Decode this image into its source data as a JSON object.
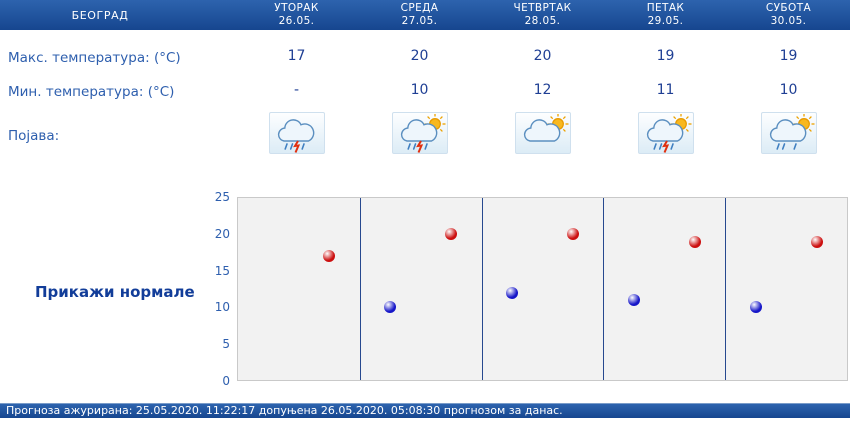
{
  "header": {
    "city": "БЕОГРАД",
    "days": [
      {
        "name": "УТОРАК",
        "date": "26.05."
      },
      {
        "name": "СРЕДА",
        "date": "27.05."
      },
      {
        "name": "ЧЕТВРТАК",
        "date": "28.05."
      },
      {
        "name": "ПЕТАК",
        "date": "29.05."
      },
      {
        "name": "СУБОТА",
        "date": "30.05."
      }
    ]
  },
  "rows": {
    "max_label": "Макс. температура: (°C)",
    "min_label": "Мин. температура: (°C)",
    "phenomena_label": "Појава:",
    "max_values": [
      "17",
      "20",
      "20",
      "19",
      "19"
    ],
    "min_values": [
      "-",
      "10",
      "12",
      "11",
      "10"
    ],
    "icons": [
      {
        "name": "rain-thunder-icon",
        "sun": false,
        "rain": true,
        "thunder": true
      },
      {
        "name": "sun-rain-thunder-icon",
        "sun": true,
        "rain": true,
        "thunder": true
      },
      {
        "name": "sun-cloud-icon",
        "sun": true,
        "rain": false,
        "thunder": false
      },
      {
        "name": "sun-rain-thunder-icon",
        "sun": true,
        "rain": true,
        "thunder": true
      },
      {
        "name": "sun-rain-icon",
        "sun": true,
        "rain": true,
        "thunder": false
      }
    ]
  },
  "normals_button": "Прикажи нормале",
  "chart_data": {
    "type": "scatter",
    "title": "",
    "xlabel": "",
    "ylabel": "",
    "categories": [
      "26.05.",
      "27.05.",
      "28.05.",
      "29.05.",
      "30.05."
    ],
    "series": [
      {
        "name": "Макс. температура",
        "color": "#cc0f0f",
        "offset": 0.75,
        "values": [
          17,
          20,
          20,
          19,
          19
        ]
      },
      {
        "name": "Мин. температура",
        "color": "#1616c8",
        "offset": 0.25,
        "values": [
          null,
          10,
          12,
          11,
          10
        ]
      }
    ],
    "ylim": [
      0,
      25
    ],
    "yticks": [
      0,
      5,
      10,
      15,
      20,
      25
    ],
    "grid": false,
    "legend_position": "none"
  },
  "colors": {
    "header_bg": "#16468f",
    "label_text": "#2e5fae",
    "value_text": "#1f3f94"
  },
  "footer": {
    "text": "Прогноза ажурирана:   25.05.2020. 11:22:17 допуњена 26.05.2020. 05:08:30 прогнозом за данас."
  }
}
